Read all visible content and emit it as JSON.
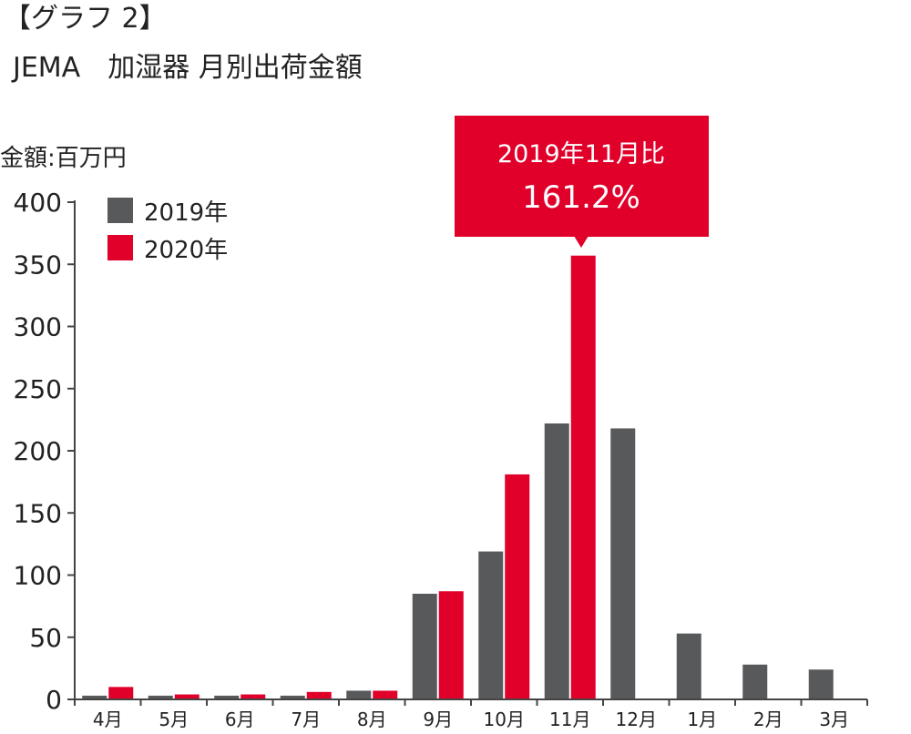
{
  "title": {
    "line1": "【グラフ 2】",
    "line2": "JEMA　加湿器 月別出荷金額"
  },
  "colors": {
    "series_2019": "#58595b",
    "series_2020": "#e0002a",
    "axis": "#444444",
    "text": "#222222",
    "highlight_label": "#e0002a"
  },
  "callout": {
    "line1": "2019年11月比",
    "line2": "161.2%",
    "target_category": "11月"
  },
  "chart_data": {
    "type": "bar",
    "ylabel": "金額:百万円",
    "xlabel": "",
    "ylim": [
      0,
      400
    ],
    "yticks": [
      0,
      50,
      100,
      150,
      200,
      250,
      300,
      350,
      400
    ],
    "grid": false,
    "legend_position": "top-left",
    "categories": [
      "4月",
      "5月",
      "6月",
      "7月",
      "8月",
      "9月",
      "10月",
      "11月",
      "12月",
      "1月",
      "2月",
      "3月"
    ],
    "highlight_category": "11月",
    "series": [
      {
        "name": "2019年",
        "values": [
          3,
          3,
          3,
          3,
          7,
          85,
          119,
          222,
          218,
          53,
          28,
          24
        ]
      },
      {
        "name": "2020年",
        "values": [
          10,
          4,
          4,
          6,
          7,
          87,
          181,
          357,
          null,
          null,
          null,
          null
        ]
      }
    ]
  }
}
